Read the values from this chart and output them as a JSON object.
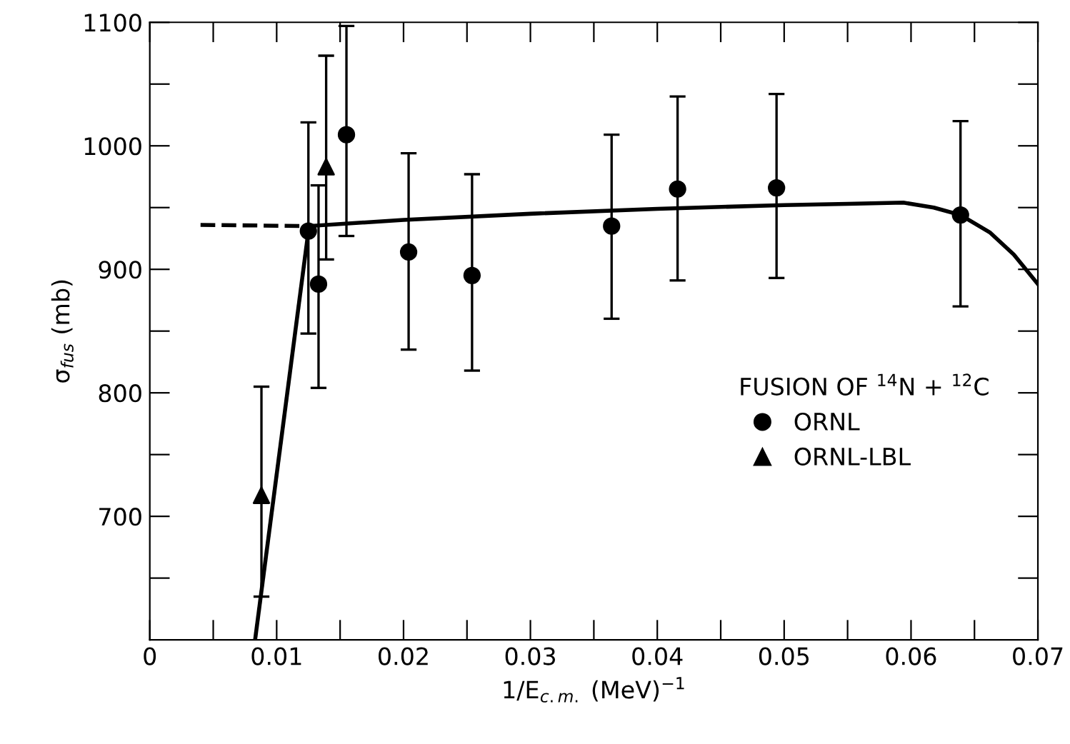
{
  "chart_data": {
    "type": "scatter",
    "xlabel": "1/E$_{c.m.}$ (MeV)$^{−1}$",
    "ylabel": "σ$_{fus}$ (mb)",
    "legend_title": "FUSION OF $^{14}$N + $^{12}$C",
    "legend": "right",
    "xlim": [
      0,
      0.07
    ],
    "ylim": [
      600,
      1100
    ],
    "xticks": [
      0,
      {
        "value": 0.005,
        "label": null
      },
      0.01,
      {
        "value": 0.015,
        "label": null
      },
      0.02,
      {
        "value": 0.025,
        "label": null
      },
      0.03,
      {
        "value": 0.035,
        "label": null
      },
      0.04,
      {
        "value": 0.045,
        "label": null
      },
      0.05,
      {
        "value": 0.055,
        "label": null
      },
      0.06,
      {
        "value": 0.065,
        "label": null
      },
      0.07
    ],
    "yticks": [
      {
        "value": 650,
        "label": null
      },
      700,
      {
        "value": 750,
        "label": null
      },
      800,
      {
        "value": 850,
        "label": null
      },
      900,
      {
        "value": 950,
        "label": null
      },
      1000,
      {
        "value": 1050,
        "label": null
      },
      1100
    ],
    "grid": false,
    "series": [
      {
        "name": "ORNL",
        "marker": "circle",
        "color": "#000000",
        "x": [
          0.0125,
          0.0133,
          0.0155,
          0.0204,
          0.0254,
          0.0364,
          0.0416,
          0.0494,
          0.0639
        ],
        "values": [
          931,
          888,
          1009,
          914,
          895,
          935,
          965,
          966,
          944
        ],
        "errors": [
          [
            848,
            1019
          ],
          [
            804,
            968
          ],
          [
            927,
            1097
          ],
          [
            835,
            994
          ],
          [
            818,
            977
          ],
          [
            860,
            1009
          ],
          [
            891,
            1040
          ],
          [
            893,
            1042
          ],
          [
            870,
            1020
          ]
        ]
      },
      {
        "name": "ORNL-LBL",
        "marker": "triangle",
        "color": "#000000",
        "x": [
          0.0088,
          0.0139
        ],
        "values": [
          717,
          983
        ],
        "errors": [
          [
            635,
            805
          ],
          [
            908,
            1073
          ]
        ]
      },
      {
        "type": "line",
        "line_style": "dashed",
        "color": "#000000",
        "x": [
          0.004,
          0.0125
        ],
        "values": [
          936,
          935
        ]
      },
      {
        "type": "line",
        "line_style": "solid",
        "color": "#000000",
        "x": [
          0.0125,
          0.02,
          0.03,
          0.04,
          0.05,
          0.055,
          0.0594,
          0.0618,
          0.0639,
          0.0662,
          0.0681,
          0.07
        ],
        "values": [
          935,
          940,
          945,
          949,
          952,
          953,
          954,
          950,
          944,
          930,
          912,
          888
        ]
      },
      {
        "type": "line",
        "line_style": "solid",
        "color": "#000000",
        "x": [
          0.0083,
          0.0125
        ],
        "values": [
          600,
          931
        ]
      }
    ]
  }
}
